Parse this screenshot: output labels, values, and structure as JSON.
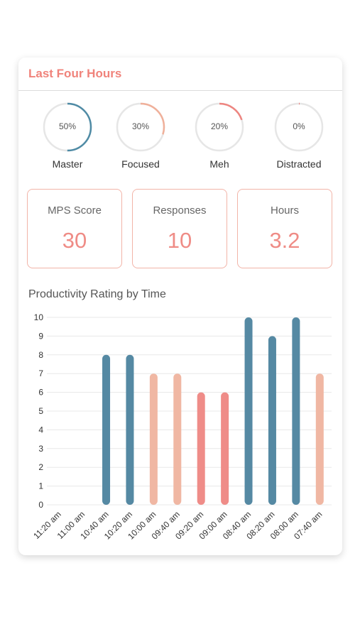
{
  "card": {
    "title": "Last Four Hours"
  },
  "rings": [
    {
      "label": "Master",
      "percent_text": "50%",
      "value": 0.5,
      "color": "#4f8ba5"
    },
    {
      "label": "Focused",
      "percent_text": "30%",
      "value": 0.3,
      "color": "#f0b09a"
    },
    {
      "label": "Meh",
      "percent_text": "20%",
      "value": 0.2,
      "color": "#ee8580"
    },
    {
      "label": "Distracted",
      "percent_text": "0%",
      "value": 0.005,
      "color": "#ee8580"
    }
  ],
  "stats": [
    {
      "label": "MPS Score",
      "value": "30"
    },
    {
      "label": "Responses",
      "value": "10"
    },
    {
      "label": "Hours",
      "value": "3.2"
    }
  ],
  "colors": {
    "master": "#5589a3",
    "focused": "#f0b7a3",
    "meh": "#ef8c88",
    "grid": "#e8e8e8"
  },
  "chart_data": {
    "type": "bar",
    "title": "Productivity Rating by Time",
    "categories": [
      "11:20 am",
      "11:00 am",
      "10:40 am",
      "10:20 am",
      "10:00 am",
      "09:40 am",
      "09:20 am",
      "09:00 am",
      "08:40 am",
      "08:20 am",
      "08:00 am",
      "07:40 am"
    ],
    "values": [
      0,
      0,
      8,
      8,
      7,
      7,
      6,
      6,
      10,
      9,
      10,
      7
    ],
    "bar_categories": [
      "none",
      "none",
      "master",
      "master",
      "focused",
      "focused",
      "meh",
      "meh",
      "master",
      "master",
      "master",
      "focused"
    ],
    "ylim": [
      0,
      10
    ],
    "yticks": [
      "0",
      "1",
      "2",
      "3",
      "4",
      "5",
      "6",
      "7",
      "8",
      "9",
      "10"
    ],
    "grid": true
  }
}
